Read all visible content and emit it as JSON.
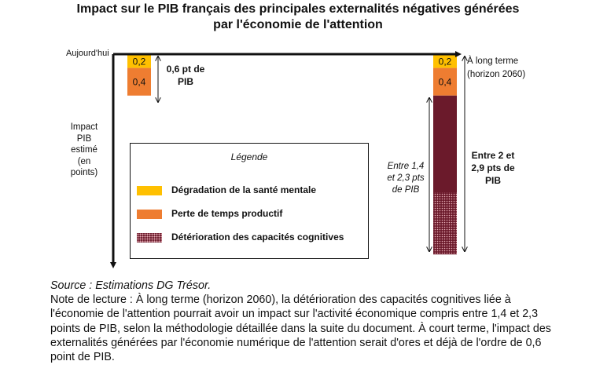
{
  "title_line1": "Impact sur le PIB français des principales externalités négatives générées",
  "title_line2": "par l'économie de l'attention",
  "labels": {
    "today": "Aujourd'hui",
    "long_term_1": "À long terme",
    "long_term_2": "(horizon 2060)",
    "yaxis_1": "Impact",
    "yaxis_2": "PIB",
    "yaxis_3": "estimé",
    "yaxis_4": "(en",
    "yaxis_5": "points)",
    "today_total_1": "0,6 pt de",
    "today_total_2": "PIB",
    "lt_cog_range_1": "Entre 1,4",
    "lt_cog_range_2": "et 2,3 pts",
    "lt_cog_range_3": "de PIB",
    "lt_total_1": "Entre 2 et",
    "lt_total_2": "2,9 pts de",
    "lt_total_3": "PIB"
  },
  "legend": {
    "title": "Légende",
    "items": [
      {
        "label": "Dégradation de la santé mentale",
        "color": "#ffc000"
      },
      {
        "label": "Perte de temps productif",
        "color": "#ee7d31"
      },
      {
        "label": "Détérioration des capacités cognitives",
        "color": "#6b1a2b"
      }
    ]
  },
  "chart_data": {
    "type": "bar",
    "orientation": "downward-stacked",
    "categories": [
      "Aujourd'hui",
      "À long terme (horizon 2060)"
    ],
    "series": [
      {
        "name": "Dégradation de la santé mentale",
        "color": "#ffc000",
        "values": [
          0.2,
          0.2
        ],
        "data_labels": [
          "0,2",
          "0,2"
        ]
      },
      {
        "name": "Perte de temps productif",
        "color": "#ee7d31",
        "values": [
          0.4,
          0.4
        ],
        "data_labels": [
          "0,4",
          "0,4"
        ]
      },
      {
        "name": "Détérioration des capacités cognitives",
        "color": "#6b1a2b",
        "values": [
          0,
          1.4
        ],
        "values_max": [
          0,
          2.3
        ],
        "data_labels": [
          "",
          ""
        ]
      }
    ],
    "totals": [
      {
        "min": 0.6,
        "max": 0.6
      },
      {
        "min": 2.0,
        "max": 2.9
      }
    ],
    "legend_position": "center"
  },
  "note": {
    "source": "Source : Estimations DG Trésor.",
    "text": "Note de lecture : À long terme (horizon 2060), la détérioration des capacités cognitives liée à l'économie de l'attention pourrait avoir un impact sur l'activité économique compris entre 1,4 et 2,3 points de PIB, selon la méthodologie détaillée dans la suite du document. À court terme, l'impact des externalités générées par l'économie numérique de l'attention serait d'ores et déjà de l'ordre de 0,6 point de PIB."
  }
}
